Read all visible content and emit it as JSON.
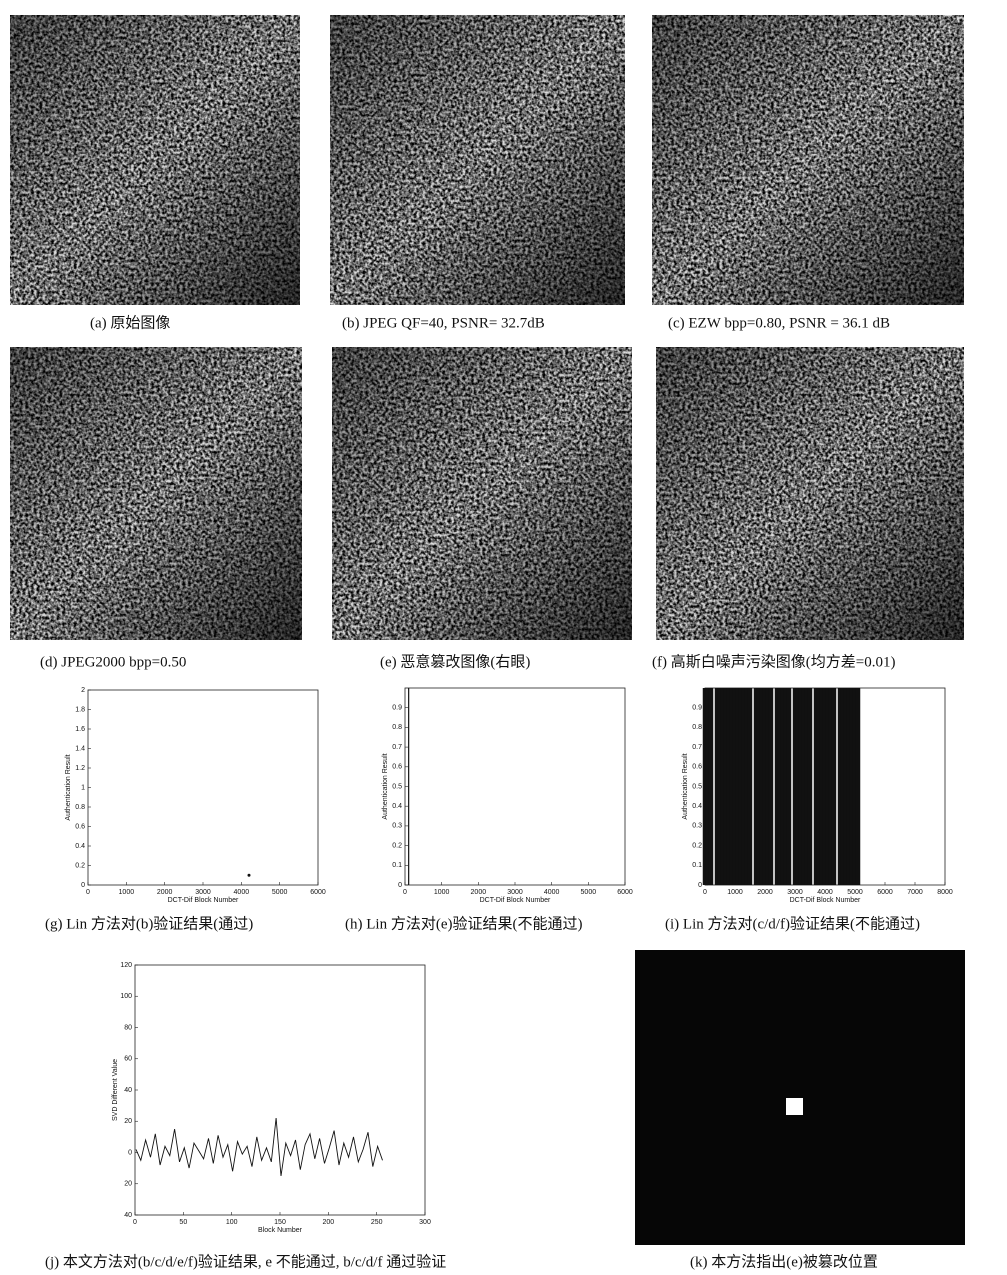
{
  "panels": [
    {
      "caption": "(a)  原始图像"
    },
    {
      "caption": "(b) JPEG QF=40, PSNR= 32.7dB"
    },
    {
      "caption": "(c) EZW bpp=0.80, PSNR = 36.1 dB"
    },
    {
      "caption": "(d) JPEG2000 bpp=0.50"
    },
    {
      "caption": "(e)  恶意篡改图像(右眼)"
    },
    {
      "caption": "(f)  高斯白噪声污染图像(均方差=0.01)"
    },
    {
      "caption": "(k) 本方法指出(e)被篡改位置"
    }
  ],
  "chart_data": [
    {
      "type": "scatter",
      "caption": "(g) Lin 方法对(b)验证结果(通过)",
      "xlabel": "DCT-Dif Block Number",
      "ylabel": "Authentication Result",
      "x": [
        4200
      ],
      "values": [
        0.1
      ],
      "color": "#111",
      "xlim": [
        0,
        6000
      ],
      "xticks": [
        0,
        1000,
        2000,
        3000,
        4000,
        5000,
        6000
      ],
      "ylim": [
        0,
        2
      ],
      "yticks": [
        0,
        0.2,
        0.4,
        0.6,
        0.8,
        1,
        1.2,
        1.4,
        1.6,
        1.8,
        2
      ]
    },
    {
      "type": "stem",
      "caption": "(h) Lin 方法对(e)验证结果(不能通过)",
      "xlabel": "DCT-Dif Block Number",
      "ylabel": "Authentication Result",
      "x": [
        100
      ],
      "values": [
        1
      ],
      "color": "#111",
      "xlim": [
        0,
        6000
      ],
      "xticks": [
        0,
        1000,
        2000,
        3000,
        4000,
        5000,
        6000
      ],
      "ylim": [
        0,
        1
      ],
      "yticks": [
        0,
        0.1,
        0.2,
        0.3,
        0.4,
        0.5,
        0.6,
        0.7,
        0.8,
        0.9
      ]
    },
    {
      "type": "stem",
      "caption": "(i) Lin 方法对(c/d/f)验证结果(不能通过)",
      "xlabel": "DCT-Dif Block Number",
      "ylabel": "Authentication Result",
      "x": [
        0,
        100,
        200,
        400,
        500,
        600,
        700,
        800,
        900,
        1000,
        1100,
        1200,
        1300,
        1400,
        1500,
        1700,
        1800,
        1900,
        2000,
        2100,
        2200,
        2400,
        2500,
        2600,
        2700,
        2800,
        3000,
        3100,
        3200,
        3300,
        3400,
        3500,
        3700,
        3800,
        3900,
        4000,
        4100,
        4200,
        4300,
        4500,
        4600,
        4700,
        4800,
        4900,
        5000,
        5100
      ],
      "values": [
        1,
        1,
        1,
        1,
        1,
        1,
        1,
        1,
        1,
        1,
        1,
        1,
        1,
        1,
        1,
        1,
        1,
        1,
        1,
        1,
        1,
        1,
        1,
        1,
        1,
        1,
        1,
        1,
        1,
        1,
        1,
        1,
        1,
        1,
        1,
        1,
        1,
        1,
        1,
        1,
        1,
        1,
        1,
        1,
        1,
        1
      ],
      "color": "#111",
      "xlim": [
        0,
        8000
      ],
      "xticks": [
        0,
        1000,
        2000,
        3000,
        4000,
        5000,
        6000,
        7000,
        8000
      ],
      "ylim": [
        0,
        1
      ],
      "yticks": [
        0,
        0.1,
        0.2,
        0.3,
        0.4,
        0.5,
        0.6,
        0.7,
        0.8,
        0.9
      ]
    },
    {
      "type": "line",
      "caption": "(j) 本文方法对(b/c/d/e/f)验证结果, e 不能通过, b/c/d/f 通过验证",
      "xlabel": "Block Number",
      "ylabel": "SVD Different Value",
      "x": [
        1,
        6,
        11,
        16,
        21,
        26,
        31,
        36,
        41,
        46,
        51,
        56,
        61,
        66,
        71,
        76,
        81,
        86,
        91,
        96,
        101,
        106,
        111,
        116,
        121,
        126,
        131,
        136,
        141,
        146,
        151,
        156,
        161,
        166,
        171,
        176,
        181,
        186,
        191,
        196,
        201,
        206,
        211,
        216,
        221,
        226,
        231,
        236,
        241,
        246,
        251,
        256
      ],
      "values": [
        2,
        -5,
        8,
        -3,
        12,
        -8,
        4,
        -2,
        15,
        -6,
        3,
        -10,
        6,
        1,
        -4,
        9,
        -7,
        11,
        -3,
        5,
        -12,
        7,
        -1,
        4,
        -9,
        10,
        -5,
        3,
        -6,
        22,
        -15,
        6,
        -2,
        8,
        -11,
        5,
        12,
        -4,
        9,
        -7,
        3,
        14,
        -8,
        6,
        -3,
        10,
        -6,
        2,
        13,
        -9,
        4,
        -5
      ],
      "color": "#111",
      "xlim": [
        0,
        300
      ],
      "xticks": [
        0,
        50,
        100,
        150,
        200,
        250,
        300
      ],
      "ylim": [
        -40,
        120
      ],
      "yticks": [
        {
          "value": -40,
          "label": "40"
        },
        {
          "value": -20,
          "label": "20"
        },
        0,
        20,
        40,
        60,
        80,
        100,
        120
      ]
    }
  ]
}
